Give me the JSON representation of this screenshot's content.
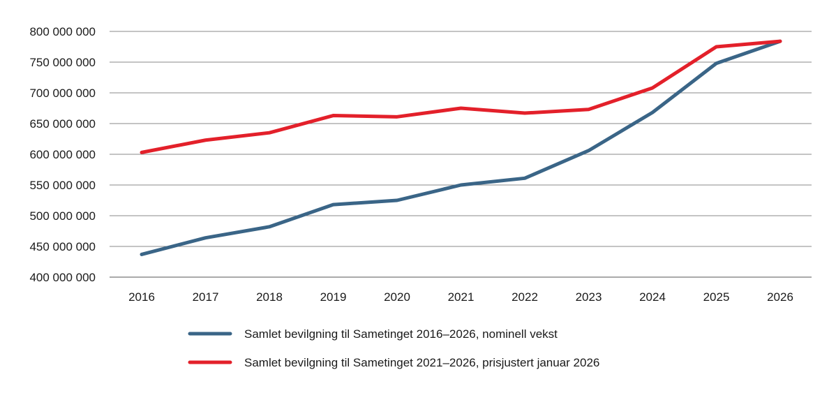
{
  "chart_data": {
    "type": "line",
    "title": "",
    "xlabel": "",
    "ylabel": "",
    "x": [
      "2016",
      "2017",
      "2018",
      "2019",
      "2020",
      "2021",
      "2022",
      "2023",
      "2024",
      "2025",
      "2026"
    ],
    "ylim": [
      400000000,
      800000000
    ],
    "yticks": [
      400000000,
      450000000,
      500000000,
      550000000,
      600000000,
      650000000,
      700000000,
      750000000,
      800000000
    ],
    "ytick_labels": [
      "400 000 000",
      "450 000 000",
      "500 000 000",
      "550 000 000",
      "600 000 000",
      "650 000 000",
      "700 000 000",
      "750 000 000",
      "800 000 000"
    ],
    "grid": true,
    "legend_position": "bottom",
    "series": [
      {
        "name": "Samlet bevilgning til Sametinget 2016–2026, nominell vekst",
        "color": "#3a6587",
        "values": [
          437000000,
          464000000,
          482000000,
          518000000,
          525000000,
          550000000,
          561000000,
          606000000,
          668000000,
          748000000,
          784000000
        ]
      },
      {
        "name": "Samlet bevilgning til Sametinget 2021–2026, prisjustert januar 2026",
        "color": "#e3202a",
        "values": [
          603000000,
          623000000,
          635000000,
          663000000,
          661000000,
          675000000,
          667000000,
          673000000,
          708000000,
          775000000,
          784000000
        ]
      }
    ]
  }
}
